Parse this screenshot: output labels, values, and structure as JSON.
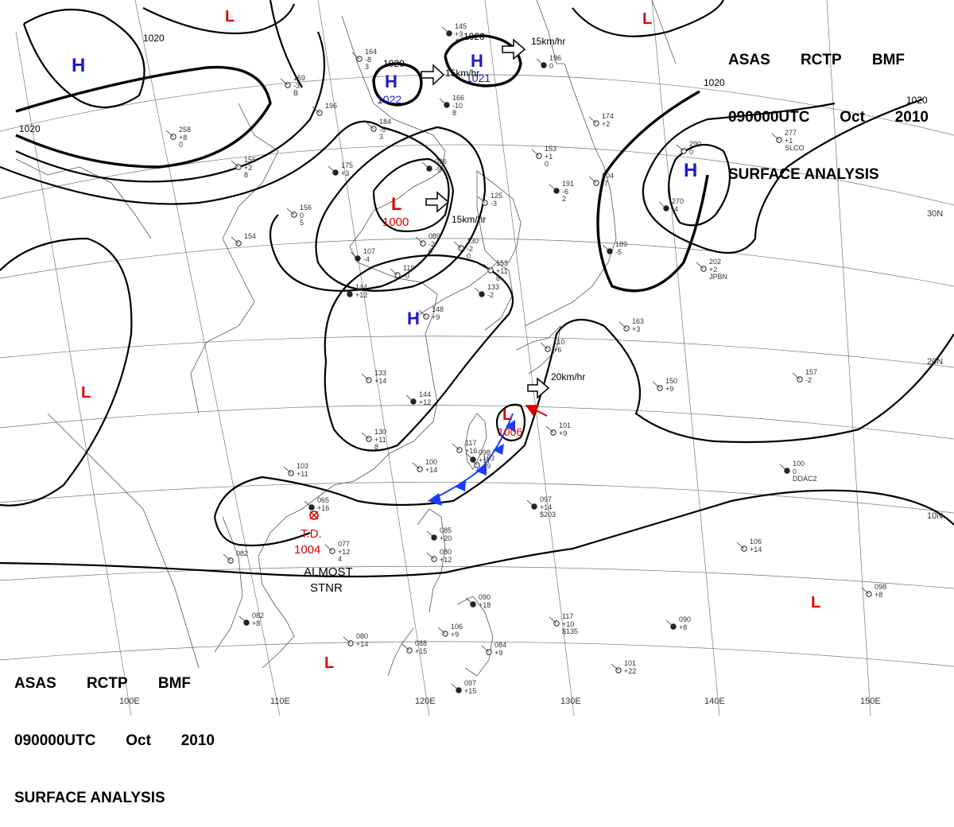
{
  "titles": {
    "top_right": {
      "line1": [
        "ASAS",
        "RCTP",
        "BMF"
      ],
      "line2": [
        "090000UTC",
        "Oct",
        "2010"
      ],
      "line3": "SURFACE ANALYSIS"
    },
    "bottom_left": {
      "line1": [
        "ASAS",
        "RCTP",
        "BMF"
      ],
      "line2": [
        "090000UTC",
        "Oct",
        "2010"
      ],
      "line3": "SURFACE ANALYSIS"
    }
  },
  "colors": {
    "high": "#1a1acc",
    "low": "#e00000",
    "front": "#1a3cff",
    "isobar": "#000000"
  },
  "lat_labels": [
    "30N",
    "20N",
    "10N"
  ],
  "lon_labels": [
    "100E",
    "110E",
    "120E",
    "130E",
    "140E",
    "150E"
  ],
  "isobar_labels": [
    "1020",
    "1020",
    "1020",
    "1020",
    "1020",
    "1020"
  ],
  "highs": [
    {
      "letter": "H",
      "pressure": "1022"
    },
    {
      "letter": "H",
      "pressure": "1021"
    },
    {
      "letter": "H",
      "pressure": ""
    },
    {
      "letter": "H",
      "pressure": ""
    },
    {
      "letter": "H",
      "pressure": ""
    }
  ],
  "lows": [
    {
      "letter": "L",
      "pressure": "1000"
    },
    {
      "letter": "L",
      "pressure": "1006"
    },
    {
      "letter": "L",
      "pressure": ""
    },
    {
      "letter": "L",
      "pressure": ""
    },
    {
      "letter": "L",
      "pressure": ""
    },
    {
      "letter": "L",
      "pressure": ""
    },
    {
      "letter": "L",
      "pressure": ""
    }
  ],
  "motion": [
    {
      "text": "15km/hr"
    },
    {
      "text": "15km/hr"
    },
    {
      "text": "15km/hr"
    },
    {
      "text": "20km/hr"
    }
  ],
  "td": {
    "label": "T.D.",
    "pressure": "1004",
    "note_line1": "ALMOST",
    "note_line2": "STNR"
  },
  "stations": [
    {
      "a": "145",
      "b": "+3",
      "c": "4"
    },
    {
      "a": "164",
      "b": "-8",
      "c": "3"
    },
    {
      "a": "169",
      "b": "-3",
      "c": "B"
    },
    {
      "a": "166",
      "b": "-10",
      "c": "8"
    },
    {
      "a": "184",
      "b": "-5",
      "c": "3"
    },
    {
      "a": "196",
      "b": "",
      "c": ""
    },
    {
      "a": "175",
      "b": "+3",
      "c": ""
    },
    {
      "a": "155",
      "b": "+2",
      "c": "8"
    },
    {
      "a": "258",
      "b": "+8",
      "c": "0"
    },
    {
      "a": "036",
      "b": "-9",
      "c": ""
    },
    {
      "a": "125",
      "b": "-3",
      "c": ""
    },
    {
      "a": "153",
      "b": "+1",
      "c": "0"
    },
    {
      "a": "191",
      "b": "-6",
      "c": "2"
    },
    {
      "a": "204",
      "b": "-7",
      "c": ""
    },
    {
      "a": "174",
      "b": "+2",
      "c": ""
    },
    {
      "a": "196",
      "b": "0",
      "c": ""
    },
    {
      "a": "277",
      "b": "+1",
      "c": "SLCO"
    },
    {
      "a": "290",
      "b": "0",
      "c": ""
    },
    {
      "a": "270",
      "b": "-4",
      "c": ""
    },
    {
      "a": "089",
      "b": "-2",
      "c": "0"
    },
    {
      "a": "130",
      "b": "-2",
      "c": "0"
    },
    {
      "a": "107",
      "b": "-4",
      "c": ""
    },
    {
      "a": "119",
      "b": "-0",
      "c": ""
    },
    {
      "a": "153",
      "b": "+11",
      "c": "8"
    },
    {
      "a": "133",
      "b": "-2",
      "c": ""
    },
    {
      "a": "156",
      "b": "0",
      "c": "5"
    },
    {
      "a": "148",
      "b": "+9",
      "c": ""
    },
    {
      "a": "144",
      "b": "+12",
      "c": ""
    },
    {
      "a": "154",
      "b": "",
      "c": ""
    },
    {
      "a": "133",
      "b": "+14",
      "c": ""
    },
    {
      "a": "144",
      "b": "+12",
      "c": ""
    },
    {
      "a": "130",
      "b": "+11",
      "c": "8"
    },
    {
      "a": "117",
      "b": "+16",
      "c": ""
    },
    {
      "a": "098",
      "b": "+17",
      "c": ""
    },
    {
      "a": "100",
      "b": "+14",
      "c": ""
    },
    {
      "a": "103",
      "b": "+11",
      "c": ""
    },
    {
      "a": "065",
      "b": "+16",
      "c": ""
    },
    {
      "a": "077",
      "b": "+12",
      "c": "4"
    },
    {
      "a": "082",
      "b": "",
      "c": ""
    },
    {
      "a": "082",
      "b": "+8",
      "c": ""
    },
    {
      "a": "080",
      "b": "+14",
      "c": ""
    },
    {
      "a": "088",
      "b": "+15",
      "c": ""
    },
    {
      "a": "097",
      "b": "+15",
      "c": ""
    },
    {
      "a": "106",
      "b": "+9",
      "c": ""
    },
    {
      "a": "084",
      "b": "+9",
      "c": ""
    },
    {
      "a": "090",
      "b": "+18",
      "c": ""
    },
    {
      "a": "117",
      "b": "+10",
      "c": "$135"
    },
    {
      "a": "101",
      "b": "+22",
      "c": ""
    },
    {
      "a": "090",
      "b": "+8",
      "c": ""
    },
    {
      "a": "098",
      "b": "+8",
      "c": ""
    },
    {
      "a": "106",
      "b": "+14",
      "c": ""
    },
    {
      "a": "100",
      "b": "0",
      "c": "DDAC2"
    },
    {
      "a": "150",
      "b": "+9",
      "c": ""
    },
    {
      "a": "157",
      "b": "-2",
      "c": ""
    },
    {
      "a": "097",
      "b": "+14",
      "c": "$203"
    },
    {
      "a": "101",
      "b": "+9",
      "c": ""
    },
    {
      "a": "163",
      "b": "+3",
      "c": ""
    },
    {
      "a": "189",
      "b": "-5",
      "c": ""
    },
    {
      "a": "202",
      "b": "+2",
      "c": "JPBN"
    },
    {
      "a": "110",
      "b": "+6",
      "c": ""
    },
    {
      "a": "085",
      "b": "+20",
      "c": ""
    },
    {
      "a": "080",
      "b": "+12",
      "c": ""
    },
    {
      "a": "103",
      "b": "+9",
      "c": ""
    }
  ]
}
